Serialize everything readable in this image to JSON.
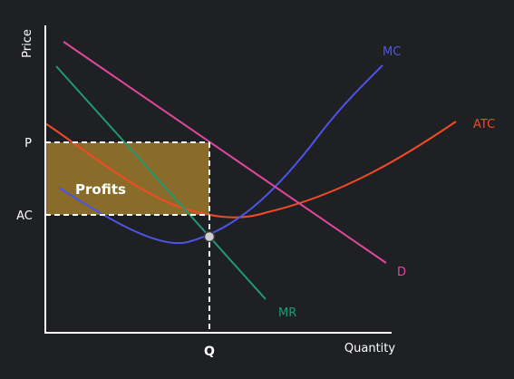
{
  "chart_data": {
    "type": "line",
    "title": "",
    "xlabel": "Quantity",
    "ylabel": "Price",
    "x_ticks": [
      "Q"
    ],
    "y_ticks": [
      "P",
      "AC"
    ],
    "region_label": "Profits",
    "series": [
      {
        "name": "D",
        "color": "#e0479e"
      },
      {
        "name": "MR",
        "color": "#1f9a73"
      },
      {
        "name": "MC",
        "color": "#4b55e8"
      },
      {
        "name": "ATC",
        "color": "#f24a26"
      }
    ]
  },
  "colors": {
    "background": "#1f2023",
    "axis": "#ffffff",
    "text": "#ffffff",
    "guide_lines": "#ffffff",
    "profit_fill": "#8a6c2a",
    "point_fill": "#cfcfcf"
  }
}
